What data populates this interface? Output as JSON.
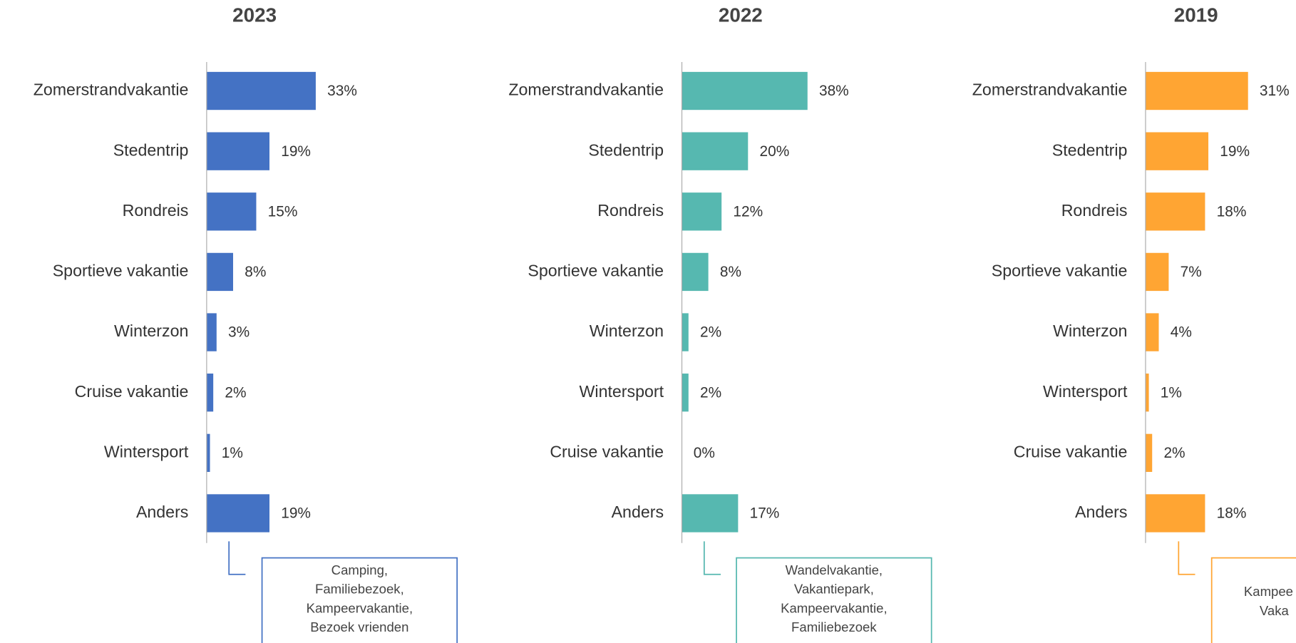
{
  "chart_data": [
    {
      "type": "bar",
      "orientation": "horizontal",
      "title": "2023",
      "categories": [
        "Zomerstrandvakantie",
        "Stedentrip",
        "Rondreis",
        "Sportieve vakantie",
        "Winterzon",
        "Cruise vakantie",
        "Wintersport",
        "Anders"
      ],
      "values": [
        33,
        19,
        15,
        8,
        3,
        2,
        1,
        19
      ],
      "value_labels": [
        "33%",
        "19%",
        "15%",
        "8%",
        "3%",
        "2%",
        "1%",
        "19%"
      ],
      "color": "#4472c4",
      "xlim": [
        0,
        40
      ],
      "annotation": [
        "Camping,",
        "Familiebezoek,",
        "Kampeervakantie,",
        "Bezoek vrienden"
      ]
    },
    {
      "type": "bar",
      "orientation": "horizontal",
      "title": "2022",
      "categories": [
        "Zomerstrandvakantie",
        "Stedentrip",
        "Rondreis",
        "Sportieve vakantie",
        "Winterzon",
        "Wintersport",
        "Cruise vakantie",
        "Anders"
      ],
      "values": [
        38,
        20,
        12,
        8,
        2,
        2,
        0,
        17
      ],
      "value_labels": [
        "38%",
        "20%",
        "12%",
        "8%",
        "2%",
        "2%",
        "0%",
        "17%"
      ],
      "color": "#56b8b0",
      "xlim": [
        0,
        40
      ],
      "annotation": [
        "Wandelvakantie,",
        "Vakantiepark,",
        "Kampeervakantie,",
        "Familiebezoek"
      ]
    },
    {
      "type": "bar",
      "orientation": "horizontal",
      "title": "2019",
      "categories": [
        "Zomerstrandvakantie",
        "Stedentrip",
        "Rondreis",
        "Sportieve vakantie",
        "Winterzon",
        "Wintersport",
        "Cruise vakantie",
        "Anders"
      ],
      "values": [
        31,
        19,
        18,
        7,
        4,
        1,
        2,
        18
      ],
      "value_labels": [
        "31%",
        "19%",
        "18%",
        "7%",
        "4%",
        "1%",
        "2%",
        "18%"
      ],
      "color": "#ffa533",
      "xlim": [
        0,
        40
      ],
      "annotation": [
        "Kampee",
        "Vaka"
      ]
    }
  ]
}
